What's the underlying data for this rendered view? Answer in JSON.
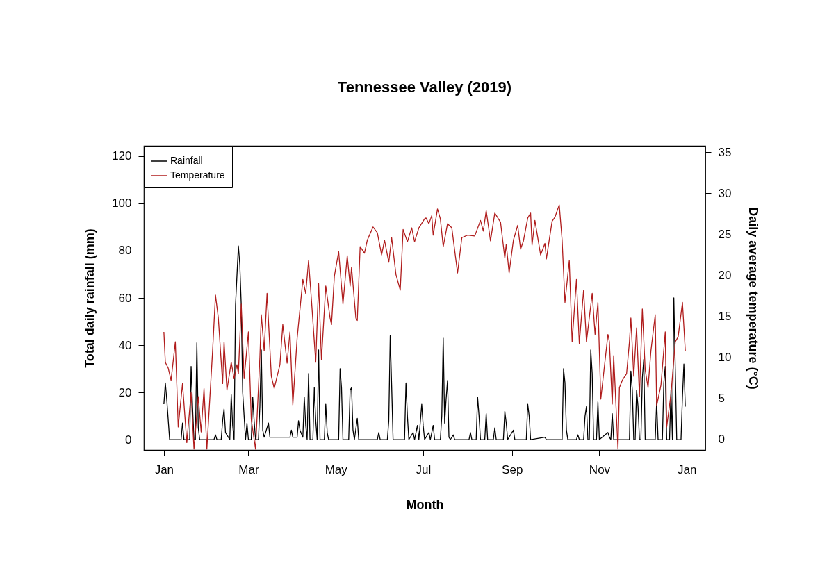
{
  "chart_data": {
    "type": "line",
    "title": "Tennessee Valley (2019)",
    "xlabel": "Month",
    "ylabel": "Total daily rainfall (mm)",
    "y2label": "Daily average temperature (°C)",
    "xlim": [
      "2018-12-18",
      "2020-01-14"
    ],
    "xticks": [
      {
        "value": "2019-01-01",
        "label": "Jan"
      },
      {
        "value": "2019-03-01",
        "label": "Mar"
      },
      {
        "value": "2019-05-01",
        "label": "May"
      },
      {
        "value": "2019-07-01",
        "label": "Jul"
      },
      {
        "value": "2019-09-01",
        "label": "Sep"
      },
      {
        "value": "2019-11-01",
        "label": "Nov"
      },
      {
        "value": "2020-01-01",
        "label": "Jan"
      }
    ],
    "ylim": [
      -4.4,
      124.4
    ],
    "yticks": [
      0,
      20,
      40,
      60,
      80,
      100,
      120
    ],
    "y2lim": [
      -1.3,
      35.8
    ],
    "y2ticks": [
      0,
      5,
      10,
      15,
      20,
      25,
      30,
      35
    ],
    "grid": false,
    "legend": "top left",
    "series": [
      {
        "name": "Rainfall",
        "color": "#000000",
        "axis": "y",
        "x": [
          "2019-01-01",
          "2019-01-02",
          "2019-01-03",
          "2019-01-05",
          "2019-01-13",
          "2019-01-14",
          "2019-01-15",
          "2019-01-19",
          "2019-01-20",
          "2019-01-21",
          "2019-01-22",
          "2019-01-23",
          "2019-01-24",
          "2019-01-25",
          "2019-01-26",
          "2019-02-05",
          "2019-02-06",
          "2019-02-07",
          "2019-02-10",
          "2019-02-11",
          "2019-02-12",
          "2019-02-13",
          "2019-02-16",
          "2019-02-17",
          "2019-02-18",
          "2019-02-19",
          "2019-02-20",
          "2019-02-22",
          "2019-02-23",
          "2019-02-24",
          "2019-02-25",
          "2019-02-27",
          "2019-02-28",
          "2019-03-01",
          "2019-03-03",
          "2019-03-04",
          "2019-03-05",
          "2019-03-06",
          "2019-03-08",
          "2019-03-09",
          "2019-03-10",
          "2019-03-11",
          "2019-03-12",
          "2019-03-15",
          "2019-03-16",
          "2019-03-30",
          "2019-03-31",
          "2019-04-01",
          "2019-04-04",
          "2019-04-05",
          "2019-04-06",
          "2019-04-08",
          "2019-04-09",
          "2019-04-10",
          "2019-04-11",
          "2019-04-12",
          "2019-04-13",
          "2019-04-15",
          "2019-04-16",
          "2019-04-17",
          "2019-04-18",
          "2019-04-19",
          "2019-04-20",
          "2019-04-23",
          "2019-04-24",
          "2019-04-25",
          "2019-04-26",
          "2019-05-03",
          "2019-05-04",
          "2019-05-05",
          "2019-05-06",
          "2019-05-10",
          "2019-05-11",
          "2019-05-12",
          "2019-05-13",
          "2019-05-14",
          "2019-05-16",
          "2019-05-17",
          "2019-05-30",
          "2019-05-31",
          "2019-06-01",
          "2019-06-06",
          "2019-06-07",
          "2019-06-08",
          "2019-06-09",
          "2019-06-10",
          "2019-06-18",
          "2019-06-19",
          "2019-06-20",
          "2019-06-21",
          "2019-06-24",
          "2019-06-25",
          "2019-06-27",
          "2019-06-28",
          "2019-06-30",
          "2019-07-01",
          "2019-07-02",
          "2019-07-05",
          "2019-07-06",
          "2019-07-08",
          "2019-07-09",
          "2019-07-13",
          "2019-07-14",
          "2019-07-15",
          "2019-07-16",
          "2019-07-17",
          "2019-07-18",
          "2019-07-19",
          "2019-07-20",
          "2019-07-22",
          "2019-07-23",
          "2019-08-02",
          "2019-08-03",
          "2019-08-04",
          "2019-08-07",
          "2019-08-08",
          "2019-08-09",
          "2019-08-10",
          "2019-08-13",
          "2019-08-14",
          "2019-08-15",
          "2019-08-19",
          "2019-08-20",
          "2019-08-21",
          "2019-08-26",
          "2019-08-27",
          "2019-08-28",
          "2019-08-29",
          "2019-09-02",
          "2019-09-03",
          "2019-09-11",
          "2019-09-12",
          "2019-09-13",
          "2019-09-14",
          "2019-09-24",
          "2019-09-25",
          "2019-10-06",
          "2019-10-07",
          "2019-10-08",
          "2019-10-09",
          "2019-10-10",
          "2019-10-16",
          "2019-10-17",
          "2019-10-18",
          "2019-10-21",
          "2019-10-22",
          "2019-10-23",
          "2019-10-24",
          "2019-10-25",
          "2019-10-26",
          "2019-10-27",
          "2019-10-28",
          "2019-10-30",
          "2019-10-31",
          "2019-11-01",
          "2019-11-07",
          "2019-11-08",
          "2019-11-09",
          "2019-11-10",
          "2019-11-11",
          "2019-11-22",
          "2019-11-23",
          "2019-11-24",
          "2019-11-25",
          "2019-11-26",
          "2019-11-27",
          "2019-11-28",
          "2019-11-29",
          "2019-11-30",
          "2019-12-01",
          "2019-12-02",
          "2019-12-03",
          "2019-12-10",
          "2019-12-11",
          "2019-12-12",
          "2019-12-15",
          "2019-12-16",
          "2019-12-17",
          "2019-12-18",
          "2019-12-20",
          "2019-12-21",
          "2019-12-22",
          "2019-12-23",
          "2019-12-24",
          "2019-12-25",
          "2019-12-28",
          "2019-12-29",
          "2019-12-30",
          "2019-12-31"
        ],
        "values": [
          15,
          24,
          17,
          0,
          0,
          7,
          0,
          0,
          31,
          14,
          0,
          0,
          41,
          5,
          0,
          0,
          2,
          0,
          0,
          8,
          13,
          3,
          0,
          19,
          6,
          0,
          57,
          82,
          74,
          57,
          20,
          0,
          7,
          0,
          0,
          18,
          8,
          0,
          0,
          14,
          38,
          4,
          1,
          7,
          1,
          1,
          4,
          1,
          1,
          8,
          4,
          1,
          18,
          6,
          0,
          28,
          0,
          0,
          22,
          8,
          0,
          38,
          0,
          0,
          15,
          3,
          0,
          0,
          30,
          22,
          0,
          0,
          21,
          22,
          4,
          0,
          9,
          0,
          0,
          3,
          0,
          0,
          8,
          44,
          23,
          0,
          0,
          24,
          10,
          0,
          3,
          0,
          6,
          0,
          15,
          6,
          0,
          3,
          0,
          6,
          0,
          0,
          10,
          43,
          7,
          17,
          25,
          1,
          0,
          2,
          0,
          0,
          3,
          0,
          0,
          18,
          10,
          0,
          0,
          11,
          0,
          0,
          5,
          0,
          0,
          12,
          7,
          0,
          4,
          0,
          0,
          15,
          10,
          0,
          1,
          0,
          0,
          30,
          24,
          4,
          0,
          0,
          2,
          0,
          0,
          10,
          14,
          0,
          0,
          38,
          28,
          0,
          0,
          16,
          0,
          3,
          1,
          0,
          11,
          0,
          0,
          29,
          21,
          0,
          0,
          21,
          14,
          0,
          0,
          26,
          34,
          0,
          0,
          16,
          0,
          0,
          24,
          31,
          0,
          0,
          21,
          0,
          60,
          30,
          0,
          0,
          18,
          32,
          14
        ]
      },
      {
        "name": "Temperature",
        "color": "#b01c1c",
        "axis": "y2",
        "x": [
          "2019-01-01",
          "2019-01-02",
          "2019-01-04",
          "2019-01-06",
          "2019-01-09",
          "2019-01-11",
          "2019-01-14",
          "2019-01-17",
          "2019-01-20",
          "2019-01-22",
          "2019-01-25",
          "2019-01-27",
          "2019-01-29",
          "2019-01-31",
          "2019-02-04",
          "2019-02-06",
          "2019-02-08",
          "2019-02-11",
          "2019-02-12",
          "2019-02-14",
          "2019-02-17",
          "2019-02-19",
          "2019-02-21",
          "2019-02-22",
          "2019-02-24",
          "2019-02-26",
          "2019-03-01",
          "2019-03-03",
          "2019-03-06",
          "2019-03-09",
          "2019-03-10",
          "2019-03-12",
          "2019-03-14",
          "2019-03-17",
          "2019-03-19",
          "2019-03-23",
          "2019-03-25",
          "2019-03-28",
          "2019-03-30",
          "2019-04-01",
          "2019-04-04",
          "2019-04-08",
          "2019-04-10",
          "2019-04-12",
          "2019-04-14",
          "2019-04-16",
          "2019-04-17",
          "2019-04-19",
          "2019-04-21",
          "2019-04-24",
          "2019-04-27",
          "2019-04-28",
          "2019-04-30",
          "2019-05-03",
          "2019-05-06",
          "2019-05-09",
          "2019-05-11",
          "2019-05-12",
          "2019-05-15",
          "2019-05-16",
          "2019-05-18",
          "2019-05-21",
          "2019-05-23",
          "2019-05-27",
          "2019-05-30",
          "2019-06-02",
          "2019-06-04",
          "2019-06-07",
          "2019-06-09",
          "2019-06-12",
          "2019-06-15",
          "2019-06-17",
          "2019-06-20",
          "2019-06-23",
          "2019-06-25",
          "2019-06-28",
          "2019-07-02",
          "2019-07-03",
          "2019-07-05",
          "2019-07-07",
          "2019-07-08",
          "2019-07-11",
          "2019-07-13",
          "2019-07-15",
          "2019-07-18",
          "2019-07-21",
          "2019-07-25",
          "2019-07-28",
          "2019-08-01",
          "2019-08-06",
          "2019-08-10",
          "2019-08-12",
          "2019-08-14",
          "2019-08-17",
          "2019-08-20",
          "2019-08-24",
          "2019-08-27",
          "2019-08-28",
          "2019-08-30",
          "2019-09-02",
          "2019-09-05",
          "2019-09-07",
          "2019-09-09",
          "2019-09-12",
          "2019-09-14",
          "2019-09-15",
          "2019-09-17",
          "2019-09-21",
          "2019-09-24",
          "2019-09-25",
          "2019-09-29",
          "2019-10-01",
          "2019-10-04",
          "2019-10-06",
          "2019-10-08",
          "2019-10-11",
          "2019-10-13",
          "2019-10-16",
          "2019-10-18",
          "2019-10-21",
          "2019-10-23",
          "2019-10-27",
          "2019-10-29",
          "2019-10-31",
          "2019-11-02",
          "2019-11-07",
          "2019-11-08",
          "2019-11-10",
          "2019-11-11",
          "2019-11-14",
          "2019-11-15",
          "2019-11-17",
          "2019-11-20",
          "2019-11-22",
          "2019-11-23",
          "2019-11-25",
          "2019-11-27",
          "2019-11-29",
          "2019-12-01",
          "2019-12-03",
          "2019-12-05",
          "2019-12-07",
          "2019-12-10",
          "2019-12-11",
          "2019-12-14",
          "2019-12-17",
          "2019-12-18",
          "2019-12-21",
          "2019-12-24",
          "2019-12-26",
          "2019-12-29",
          "2019-12-31"
        ],
        "values": [
          13.1,
          9.4,
          8.7,
          7.2,
          11.9,
          1.5,
          6.8,
          -0.4,
          5.7,
          -1.2,
          5.2,
          0.9,
          6.2,
          -1.2,
          10.8,
          17.6,
          14.8,
          6.8,
          11.9,
          6.0,
          9.4,
          7.4,
          9.1,
          8.0,
          16.5,
          7.4,
          13.1,
          2.4,
          -1.2,
          10.0,
          15.2,
          10.8,
          17.8,
          7.7,
          6.2,
          9.1,
          14.0,
          9.3,
          13.1,
          4.2,
          12.3,
          19.5,
          17.8,
          21.8,
          17.0,
          11.9,
          9.4,
          19.0,
          9.7,
          18.7,
          14.8,
          14.0,
          19.9,
          22.9,
          16.5,
          22.4,
          18.7,
          21.0,
          14.8,
          14.5,
          23.5,
          22.7,
          24.3,
          25.9,
          25.2,
          22.5,
          24.3,
          21.6,
          24.6,
          20.1,
          18.2,
          25.6,
          24.1,
          25.8,
          24.1,
          25.8,
          26.9,
          27.0,
          26.3,
          27.3,
          24.9,
          28.1,
          26.9,
          23.5,
          26.3,
          25.8,
          20.3,
          24.6,
          24.9,
          24.8,
          26.7,
          25.4,
          27.9,
          24.2,
          27.6,
          26.5,
          22.1,
          23.8,
          20.3,
          24.3,
          26.1,
          23.2,
          24.2,
          27.0,
          27.6,
          23.7,
          26.7,
          22.5,
          23.9,
          22.0,
          26.6,
          27.1,
          28.6,
          24.3,
          16.7,
          21.8,
          11.9,
          19.5,
          11.7,
          18.2,
          11.9,
          17.8,
          12.8,
          16.7,
          4.9,
          12.8,
          11.9,
          4.3,
          10.2,
          -1.2,
          6.3,
          7.2,
          8.0,
          11.9,
          14.8,
          7.7,
          13.6,
          5.2,
          15.9,
          8.5,
          6.3,
          10.8,
          15.2,
          4.1,
          6.6,
          13.1,
          1.5,
          5.5,
          11.9,
          12.5,
          16.7,
          10.8
        ]
      }
    ]
  }
}
